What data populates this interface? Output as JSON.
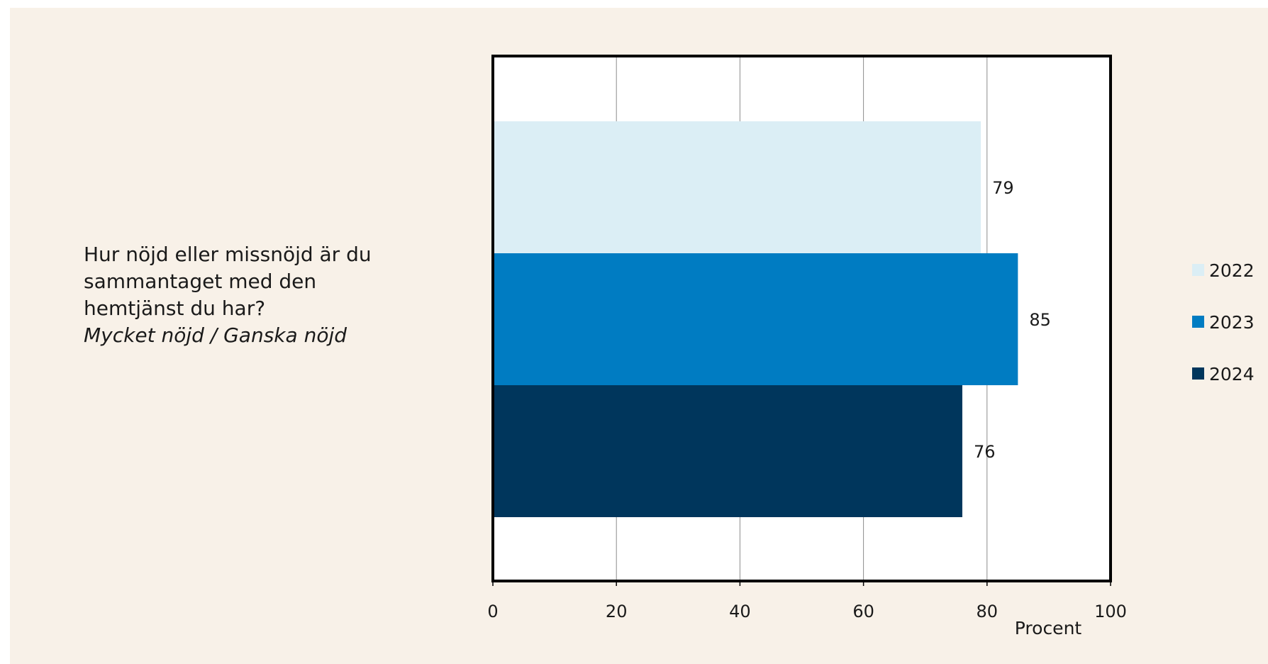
{
  "question": {
    "lines": [
      "Hur nöjd eller missnöjd är du",
      "sammantaget med den",
      "hemtjänst du har?"
    ],
    "subtitle": "Mycket nöjd / Ganska nöjd"
  },
  "chart_data": {
    "type": "bar",
    "orientation": "horizontal",
    "categories": [
      "Hur nöjd eller missnöjd är du sammantaget med den hemtjänst du har? Mycket nöjd / Ganska nöjd"
    ],
    "series": [
      {
        "name": "2022",
        "values": [
          79
        ],
        "color": "#dbeef5"
      },
      {
        "name": "2023",
        "values": [
          85
        ],
        "color": "#007cc2"
      },
      {
        "name": "2024",
        "values": [
          76
        ],
        "color": "#00365c"
      }
    ],
    "data_labels": [
      "79",
      "85",
      "76"
    ],
    "xlabel": "Procent",
    "xlim": [
      0,
      100
    ],
    "xticks": [
      0,
      20,
      40,
      60,
      80,
      100
    ],
    "grid": "vertical",
    "legend_position": "right"
  }
}
